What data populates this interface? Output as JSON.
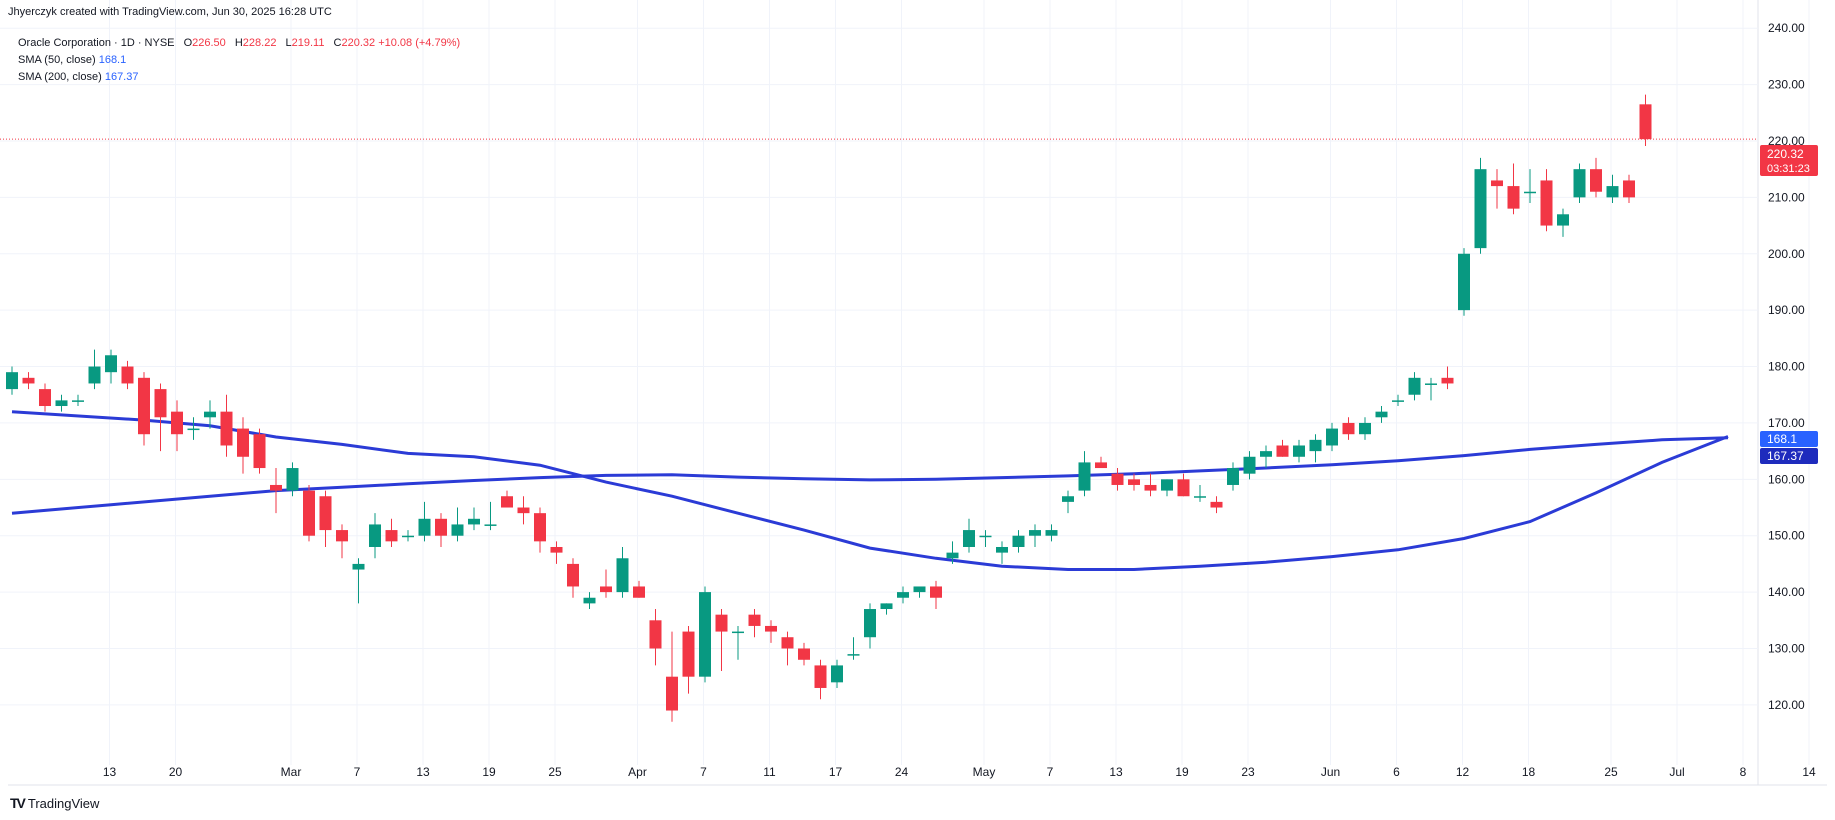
{
  "header": {
    "author_line": "Jhyerczyk created with TradingView.com, Jun 30, 2025 16:28 UTC"
  },
  "legend": {
    "symbol": "Oracle Corporation · 1D · NYSE",
    "o_label": "O",
    "o_value": "226.50",
    "h_label": "H",
    "h_value": "228.22",
    "l_label": "L",
    "l_value": "219.11",
    "c_label": "C",
    "c_value": "220.32",
    "change": "+10.08 (+4.79%)",
    "sma50_label": "SMA (50, close)",
    "sma50_value": "168.1",
    "sma200_label": "SMA (200, close)",
    "sma200_value": "167.37"
  },
  "badges": {
    "price": "220.32",
    "countdown": "03:31:23",
    "sma50": "168.1",
    "sma200": "167.37"
  },
  "footer": {
    "brand": "TradingView",
    "brand_mark": "TV"
  },
  "colors": {
    "up": "#089981",
    "down": "#f23645",
    "sma": "#2b3bd6",
    "grid": "#f0f3fa",
    "price_line": "#f23645",
    "sma_badge": "#2962ff",
    "sma_badge_dark": "#1e2bbd"
  },
  "chart_data": {
    "type": "candlestick",
    "ylim": [
      112,
      245
    ],
    "y_ticks": [
      "120.00",
      "130.00",
      "140.00",
      "150.00",
      "160.00",
      "170.00",
      "180.00",
      "190.00",
      "200.00",
      "210.00",
      "220.00",
      "230.00",
      "240.00"
    ],
    "x_ticks": [
      {
        "label": "13",
        "i": 3
      },
      {
        "label": "20",
        "i": 7
      },
      {
        "label": "Mar",
        "i": 14
      },
      {
        "label": "7",
        "i": 18
      },
      {
        "label": "13",
        "i": 22
      },
      {
        "label": "19",
        "i": 26
      },
      {
        "label": "25",
        "i": 30
      },
      {
        "label": "Apr",
        "i": 35
      },
      {
        "label": "7",
        "i": 39
      },
      {
        "label": "11",
        "i": 43
      },
      {
        "label": "17",
        "i": 47
      },
      {
        "label": "24",
        "i": 51
      },
      {
        "label": "May",
        "i": 56
      },
      {
        "label": "7",
        "i": 60
      },
      {
        "label": "13",
        "i": 64
      },
      {
        "label": "19",
        "i": 68
      },
      {
        "label": "23",
        "i": 72
      },
      {
        "label": "Jun",
        "i": 77
      },
      {
        "label": "6",
        "i": 81
      },
      {
        "label": "12",
        "i": 85
      },
      {
        "label": "18",
        "i": 89
      },
      {
        "label": "25",
        "i": 94
      },
      {
        "label": "Jul",
        "i": 98
      },
      {
        "label": "8",
        "i": 102
      },
      {
        "label": "14",
        "i": 106
      }
    ],
    "candles": [
      [
        176,
        180,
        175,
        179
      ],
      [
        178,
        179,
        176,
        177
      ],
      [
        176,
        177,
        172,
        173
      ],
      [
        173,
        175,
        172,
        174
      ],
      [
        174,
        175,
        173,
        174
      ],
      [
        177,
        183,
        176,
        180
      ],
      [
        179,
        183,
        177,
        182
      ],
      [
        180,
        181,
        176,
        177
      ],
      [
        178,
        179,
        166,
        168
      ],
      [
        176,
        177,
        165,
        171
      ],
      [
        172,
        174,
        165,
        168
      ],
      [
        169,
        171,
        167,
        169
      ],
      [
        171,
        174,
        169,
        172
      ],
      [
        172,
        175,
        164,
        166
      ],
      [
        169,
        171,
        161,
        164
      ],
      [
        168,
        169,
        161,
        162
      ],
      [
        159,
        162,
        154,
        158
      ],
      [
        158,
        163,
        157,
        162
      ],
      [
        158,
        159,
        149,
        150
      ],
      [
        157,
        158,
        148,
        151
      ],
      [
        151,
        152,
        146,
        149
      ],
      [
        144,
        146,
        138,
        145
      ],
      [
        148,
        154,
        146,
        152
      ],
      [
        151,
        153,
        148,
        149
      ],
      [
        150,
        151,
        149,
        150
      ],
      [
        150,
        156,
        149,
        153
      ],
      [
        153,
        154,
        148,
        150
      ],
      [
        150,
        155,
        149,
        152
      ],
      [
        152,
        155,
        151,
        153
      ],
      [
        152,
        156,
        151,
        152
      ],
      [
        157,
        158,
        155,
        155
      ],
      [
        155,
        157,
        152,
        154
      ],
      [
        154,
        155,
        147,
        149
      ],
      [
        148,
        149,
        145,
        147
      ],
      [
        145,
        146,
        139,
        141
      ],
      [
        138,
        140,
        137,
        139
      ],
      [
        141,
        144,
        139,
        140
      ],
      [
        140,
        148,
        139,
        146
      ],
      [
        141,
        142,
        139,
        139
      ],
      [
        135,
        137,
        127,
        130
      ],
      [
        125,
        133,
        117,
        119
      ],
      [
        133,
        134,
        122,
        125
      ],
      [
        125,
        141,
        124,
        140
      ],
      [
        136,
        137,
        126,
        133
      ],
      [
        133,
        134,
        128,
        133
      ],
      [
        136,
        137,
        132,
        134
      ],
      [
        134,
        135,
        131,
        133
      ],
      [
        132,
        133,
        127,
        130
      ],
      [
        130,
        131,
        127,
        128
      ],
      [
        127,
        128,
        121,
        123
      ],
      [
        124,
        128,
        123,
        127
      ],
      [
        129,
        132,
        128,
        129
      ],
      [
        132,
        138,
        130,
        137
      ],
      [
        137,
        138,
        136,
        138
      ],
      [
        139,
        141,
        138,
        140
      ],
      [
        140,
        141,
        139,
        141
      ],
      [
        141,
        142,
        137,
        139
      ],
      [
        146,
        149,
        145,
        147
      ],
      [
        148,
        153,
        147,
        151
      ],
      [
        150,
        151,
        148,
        150
      ],
      [
        147,
        149,
        145,
        148
      ],
      [
        148,
        151,
        147,
        150
      ],
      [
        150,
        152,
        148,
        151
      ],
      [
        150,
        152,
        149,
        151
      ],
      [
        156,
        158,
        154,
        157
      ],
      [
        158,
        165,
        157,
        163
      ],
      [
        163,
        164,
        162,
        162
      ],
      [
        161,
        162,
        158,
        159
      ],
      [
        160,
        161,
        158,
        159
      ],
      [
        159,
        161,
        157,
        158
      ],
      [
        158,
        160,
        157,
        160
      ],
      [
        160,
        161,
        157,
        157
      ],
      [
        157,
        159,
        156,
        157
      ],
      [
        156,
        157,
        154,
        155
      ],
      [
        159,
        163,
        158,
        162
      ],
      [
        161,
        165,
        160,
        164
      ],
      [
        164,
        166,
        162,
        165
      ],
      [
        166,
        167,
        164,
        164
      ],
      [
        164,
        167,
        163,
        166
      ],
      [
        165,
        168,
        163,
        167
      ],
      [
        166,
        170,
        165,
        169
      ],
      [
        170,
        171,
        167,
        168
      ],
      [
        168,
        171,
        167,
        170
      ],
      [
        171,
        173,
        170,
        172
      ],
      [
        174,
        175,
        173,
        174
      ],
      [
        175,
        179,
        174,
        178
      ],
      [
        177,
        178,
        174,
        177
      ],
      [
        178,
        180,
        176,
        177
      ],
      [
        190,
        201,
        189,
        200
      ],
      [
        201,
        217,
        200,
        215
      ],
      [
        213,
        215,
        208,
        212
      ],
      [
        212,
        216,
        207,
        208
      ],
      [
        211,
        215,
        209,
        211
      ],
      [
        213,
        215,
        204,
        205
      ],
      [
        205,
        208,
        203,
        207
      ],
      [
        210,
        216,
        209,
        215
      ],
      [
        215,
        217,
        210,
        211
      ],
      [
        210,
        214,
        209,
        212
      ],
      [
        213,
        214,
        209,
        210
      ],
      [
        226.5,
        228.22,
        219.11,
        220.32
      ]
    ],
    "series": [
      {
        "name": "SMA (50, close)",
        "values": [
          [
            0,
            172
          ],
          [
            8,
            170.5
          ],
          [
            12,
            169.5
          ],
          [
            16,
            167.5
          ],
          [
            20,
            166.2
          ],
          [
            24,
            164.6
          ],
          [
            28,
            164
          ],
          [
            32,
            162.5
          ],
          [
            36,
            159.5
          ],
          [
            40,
            157
          ],
          [
            44,
            154
          ],
          [
            48,
            151
          ],
          [
            52,
            147.8
          ],
          [
            56,
            146
          ],
          [
            60,
            144.6
          ],
          [
            64,
            144
          ],
          [
            68,
            144
          ],
          [
            72,
            144.6
          ],
          [
            76,
            145.3
          ],
          [
            80,
            146.3
          ],
          [
            84,
            147.5
          ],
          [
            88,
            149.5
          ],
          [
            92,
            152.5
          ],
          [
            96,
            157.6
          ],
          [
            100,
            163
          ],
          [
            104,
            167.6
          ]
        ]
      },
      {
        "name": "SMA (200, close)",
        "values": [
          [
            0,
            154
          ],
          [
            6,
            155.5
          ],
          [
            12,
            157
          ],
          [
            16,
            158
          ],
          [
            20,
            158.6
          ],
          [
            24,
            159.2
          ],
          [
            28,
            159.8
          ],
          [
            32,
            160.3
          ],
          [
            36,
            160.7
          ],
          [
            40,
            160.8
          ],
          [
            44,
            160.4
          ],
          [
            48,
            160.1
          ],
          [
            52,
            159.9
          ],
          [
            56,
            160
          ],
          [
            60,
            160.3
          ],
          [
            64,
            160.6
          ],
          [
            68,
            161
          ],
          [
            72,
            161.5
          ],
          [
            76,
            162
          ],
          [
            80,
            162.6
          ],
          [
            84,
            163.3
          ],
          [
            88,
            164.2
          ],
          [
            92,
            165.3
          ],
          [
            96,
            166.2
          ],
          [
            100,
            167
          ],
          [
            104,
            167.37
          ]
        ]
      }
    ],
    "last_price": 220.32
  }
}
